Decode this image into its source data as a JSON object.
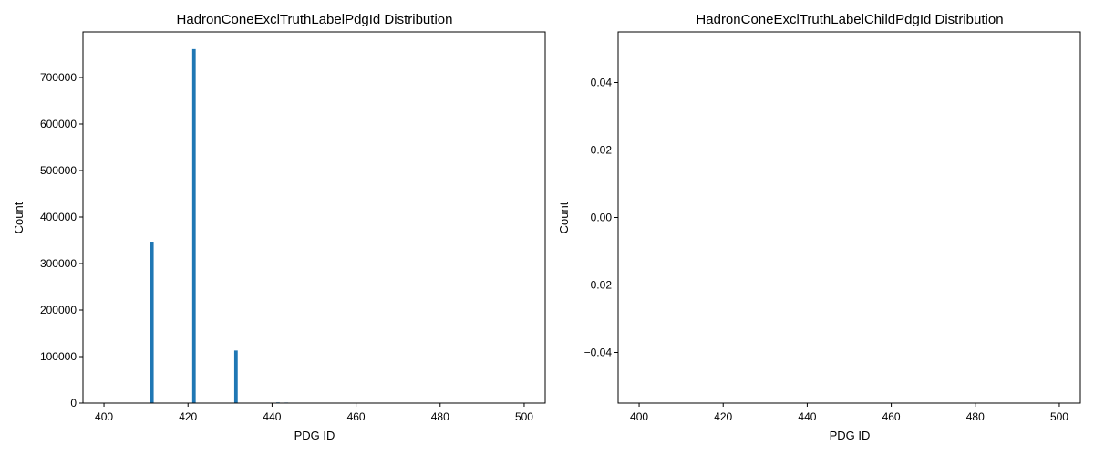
{
  "chart_data": [
    {
      "type": "bar",
      "title": "HadronConeExclTruthLabelPdgId Distribution",
      "xlabel": "PDG ID",
      "ylabel": "Count",
      "xlim": [
        395,
        505
      ],
      "ylim": [
        0,
        798000
      ],
      "xticks": [
        400,
        420,
        440,
        460,
        480,
        500
      ],
      "xtick_labels": [
        "400",
        "420",
        "440",
        "460",
        "480",
        "500"
      ],
      "yticks": [
        0,
        100000,
        200000,
        300000,
        400000,
        500000,
        600000,
        700000
      ],
      "ytick_labels": [
        "0",
        "100000",
        "200000",
        "300000",
        "400000",
        "500000",
        "600000",
        "700000"
      ],
      "bar_width": 1,
      "bars": [
        {
          "x": 411,
          "value": 347000
        },
        {
          "x": 421,
          "value": 761000
        },
        {
          "x": 431,
          "value": 113000
        },
        {
          "x": 441,
          "value": 1500
        },
        {
          "x": 443,
          "value": 1200
        }
      ],
      "color": "#1f77b4",
      "grid": false,
      "legend": "none"
    },
    {
      "type": "bar",
      "title": "HadronConeExclTruthLabelChildPdgId Distribution",
      "xlabel": "PDG ID",
      "ylabel": "Count",
      "xlim": [
        395,
        505
      ],
      "ylim": [
        -0.055,
        0.055
      ],
      "xticks": [
        400,
        420,
        440,
        460,
        480,
        500
      ],
      "xtick_labels": [
        "400",
        "420",
        "440",
        "460",
        "480",
        "500"
      ],
      "yticks": [
        -0.04,
        -0.02,
        0.0,
        0.02,
        0.04
      ],
      "ytick_labels": [
        "−0.04",
        "−0.02",
        "0.00",
        "0.02",
        "0.04"
      ],
      "bar_width": 1,
      "bars": [],
      "color": "#1f77b4",
      "grid": false,
      "legend": "none"
    }
  ]
}
